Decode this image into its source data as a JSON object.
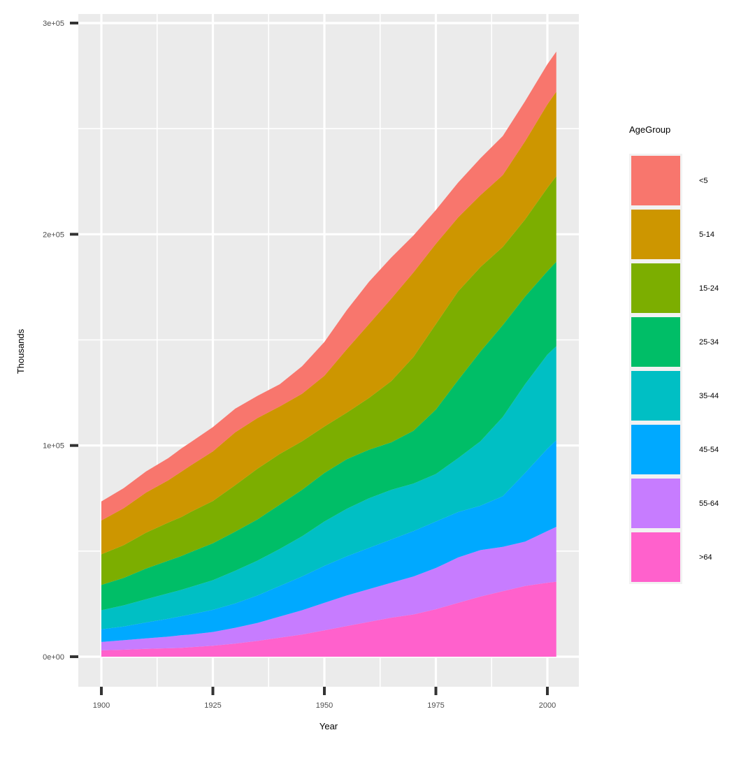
{
  "chart_data": {
    "type": "area",
    "stacked": true,
    "title": "",
    "xlabel": "Year",
    "ylabel": "Thousands",
    "xlim": [
      1900,
      2002
    ],
    "ylim": [
      0,
      300000
    ],
    "x_ticks": [
      1900,
      1925,
      1950,
      1975,
      2000
    ],
    "x_tick_labels": [
      "1900",
      "1925",
      "1950",
      "1975",
      "2000"
    ],
    "y_ticks": [
      0,
      100000,
      200000,
      300000
    ],
    "y_tick_labels": [
      "0e+00",
      "1e+05",
      "2e+05",
      "3e+05"
    ],
    "grid": true,
    "legend_title": "AgeGroup",
    "legend_position": "right",
    "x": [
      1900,
      1905,
      1910,
      1915,
      1918,
      1920,
      1925,
      1930,
      1935,
      1940,
      1945,
      1950,
      1955,
      1960,
      1965,
      1970,
      1975,
      1980,
      1985,
      1990,
      1995,
      2000,
      2002
    ],
    "series": [
      {
        "name": "<5",
        "color": "#F8766D",
        "values": [
          9000,
          9500,
          10000,
          10500,
          11000,
          11000,
          11500,
          11200,
          10500,
          10500,
          13000,
          16000,
          18500,
          20000,
          19500,
          17500,
          16000,
          16500,
          17500,
          18500,
          19000,
          19000,
          19000
        ]
      },
      {
        "name": "5-14",
        "color": "#CD9600",
        "values": [
          16000,
          17500,
          19000,
          20000,
          21500,
          22000,
          23500,
          25000,
          24000,
          22500,
          22500,
          24000,
          30000,
          35000,
          39000,
          40000,
          38000,
          35000,
          34000,
          34000,
          37000,
          39500,
          40000
        ]
      },
      {
        "name": "15-24",
        "color": "#7CAE00",
        "values": [
          14500,
          15500,
          17000,
          18000,
          18500,
          19000,
          20000,
          22000,
          24000,
          24000,
          23000,
          22000,
          22000,
          24500,
          29000,
          35000,
          40500,
          42000,
          40000,
          37000,
          36500,
          39500,
          40500
        ]
      },
      {
        "name": "25-34",
        "color": "#00BE67",
        "values": [
          12000,
          13000,
          14500,
          15500,
          16000,
          16500,
          17500,
          18500,
          19500,
          21000,
          22000,
          23000,
          23500,
          23000,
          22500,
          25000,
          30500,
          37000,
          42500,
          43500,
          41500,
          39500,
          40000
        ]
      },
      {
        "name": "35-44",
        "color": "#00BFC4",
        "values": [
          9000,
          10000,
          11000,
          12000,
          12500,
          13000,
          14000,
          15500,
          16500,
          17500,
          19000,
          21000,
          22500,
          23500,
          23500,
          22500,
          22500,
          25500,
          30500,
          37500,
          42000,
          44500,
          44500
        ]
      },
      {
        "name": "45-54",
        "color": "#00A9FF",
        "values": [
          6000,
          6500,
          7500,
          8500,
          9000,
          9500,
          10500,
          11500,
          13000,
          14500,
          16000,
          17500,
          18500,
          19500,
          20500,
          21500,
          22000,
          21500,
          21000,
          24000,
          32500,
          39000,
          41000
        ]
      },
      {
        "name": "55-64",
        "color": "#C77CFF",
        "values": [
          4000,
          4500,
          5000,
          5500,
          6000,
          6000,
          6500,
          7500,
          8500,
          10000,
          11500,
          13000,
          14500,
          15500,
          16500,
          18000,
          19500,
          21500,
          22000,
          21000,
          21000,
          24500,
          26000
        ]
      },
      {
        "name": ">64",
        "color": "#FF61CC",
        "values": [
          3000,
          3300,
          3700,
          4000,
          4200,
          4500,
          5200,
          6200,
          7500,
          9000,
          10500,
          12500,
          14500,
          16500,
          18500,
          20000,
          22500,
          25500,
          28500,
          31000,
          33500,
          35000,
          35500
        ]
      }
    ],
    "legend_order": [
      "<5",
      "5-14",
      "15-24",
      "25-34",
      "35-44",
      "45-54",
      "55-64",
      ">64"
    ]
  }
}
